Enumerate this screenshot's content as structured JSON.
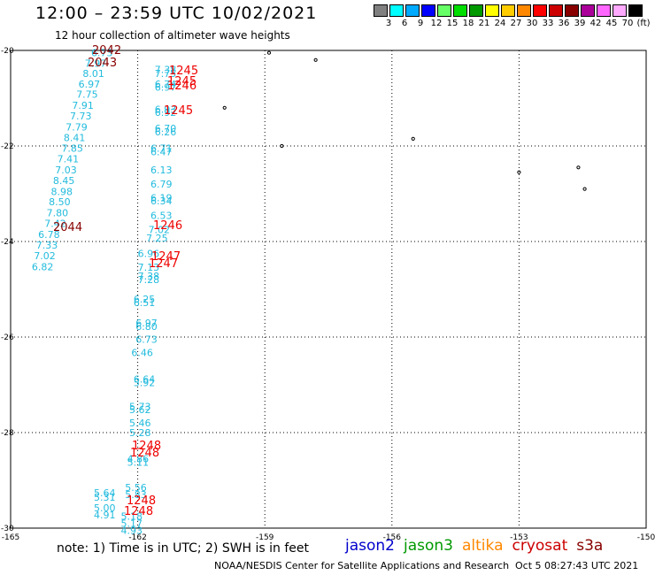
{
  "header": {
    "title": "12:00 – 23:59 UTC 10/02/2021",
    "subtitle": "12 hour collection of altimeter wave heights"
  },
  "legend": {
    "unit": "(ft)",
    "swatches": [
      {
        "color": "#808080",
        "label": "3"
      },
      {
        "color": "#00ffff",
        "label": "6"
      },
      {
        "color": "#00aaff",
        "label": "9"
      },
      {
        "color": "#0000ff",
        "label": "12"
      },
      {
        "color": "#66ff66",
        "label": "15"
      },
      {
        "color": "#00dd00",
        "label": "18"
      },
      {
        "color": "#009900",
        "label": "21"
      },
      {
        "color": "#ffff00",
        "label": "24"
      },
      {
        "color": "#ffcc00",
        "label": "27"
      },
      {
        "color": "#ff8800",
        "label": "30"
      },
      {
        "color": "#ff0000",
        "label": "33"
      },
      {
        "color": "#cc0000",
        "label": "36"
      },
      {
        "color": "#880000",
        "label": "39"
      },
      {
        "color": "#aa0099",
        "label": "42"
      },
      {
        "color": "#ff66ff",
        "label": "45"
      },
      {
        "color": "#ffaaff",
        "label": "70"
      },
      {
        "color": "#000000",
        "label": ""
      }
    ]
  },
  "map": {
    "lon_min": -165,
    "lon_max": -150,
    "lat_min": -30,
    "lat_max": -20,
    "lon_ticks": [
      "-165",
      "-162",
      "-159",
      "-156",
      "-153",
      "-150"
    ],
    "lat_ticks": [
      "-20",
      "-22",
      "-24",
      "-26",
      "-28",
      "-30"
    ],
    "islands": [
      {
        "name": "island-a",
        "lon": -159.95,
        "lat": -21.2
      },
      {
        "name": "island-b",
        "lon": -158.9,
        "lat": -20.05
      },
      {
        "name": "island-c",
        "lon": -158.6,
        "lat": -22.0
      },
      {
        "name": "island-d",
        "lon": -157.8,
        "lat": -20.2
      },
      {
        "name": "island-e",
        "lon": -155.5,
        "lat": -21.85
      },
      {
        "name": "island-f",
        "lon": -153.0,
        "lat": -22.55
      },
      {
        "name": "island-g",
        "lon": -151.6,
        "lat": -22.45
      },
      {
        "name": "island-h",
        "lon": -151.45,
        "lat": -22.9
      }
    ],
    "obs_cyan": [
      {
        "lon": -163.1,
        "lat": -20.05,
        "v": "6.73"
      },
      {
        "lon": -163.25,
        "lat": -20.27,
        "v": "7.97"
      },
      {
        "lon": -163.3,
        "lat": -20.48,
        "v": "8.01"
      },
      {
        "lon": -163.4,
        "lat": -20.7,
        "v": "6.97"
      },
      {
        "lon": -163.45,
        "lat": -20.92,
        "v": "7.75"
      },
      {
        "lon": -163.55,
        "lat": -21.15,
        "v": "7.91"
      },
      {
        "lon": -163.6,
        "lat": -21.37,
        "v": "7.73"
      },
      {
        "lon": -163.7,
        "lat": -21.6,
        "v": "7.79"
      },
      {
        "lon": -163.75,
        "lat": -21.82,
        "v": "8.41"
      },
      {
        "lon": -163.8,
        "lat": -22.05,
        "v": "7.85"
      },
      {
        "lon": -163.9,
        "lat": -22.27,
        "v": "7.41"
      },
      {
        "lon": -163.95,
        "lat": -22.5,
        "v": "7.03"
      },
      {
        "lon": -164.0,
        "lat": -22.72,
        "v": "8.45"
      },
      {
        "lon": -164.05,
        "lat": -22.95,
        "v": "8.98"
      },
      {
        "lon": -164.1,
        "lat": -23.17,
        "v": "8.50"
      },
      {
        "lon": -164.15,
        "lat": -23.4,
        "v": "7.80"
      },
      {
        "lon": -164.2,
        "lat": -23.62,
        "v": "7.42"
      },
      {
        "lon": -164.35,
        "lat": -23.85,
        "v": "6.78"
      },
      {
        "lon": -164.4,
        "lat": -24.07,
        "v": "7.33"
      },
      {
        "lon": -164.45,
        "lat": -24.3,
        "v": "7.02"
      },
      {
        "lon": -164.5,
        "lat": -24.53,
        "v": "6.82"
      },
      {
        "lon": -161.6,
        "lat": -20.4,
        "v": "7.38"
      },
      {
        "lon": -161.6,
        "lat": -20.48,
        "v": "7.75"
      },
      {
        "lon": -161.6,
        "lat": -20.7,
        "v": "6.74"
      },
      {
        "lon": -161.6,
        "lat": -20.77,
        "v": "6.97"
      },
      {
        "lon": -161.6,
        "lat": -21.23,
        "v": "6.93"
      },
      {
        "lon": -161.6,
        "lat": -21.3,
        "v": "6.92"
      },
      {
        "lon": -161.6,
        "lat": -21.63,
        "v": "6.70"
      },
      {
        "lon": -161.6,
        "lat": -21.7,
        "v": "6.26"
      },
      {
        "lon": -161.7,
        "lat": -22.05,
        "v": "6.71"
      },
      {
        "lon": -161.7,
        "lat": -22.12,
        "v": "6.47"
      },
      {
        "lon": -161.7,
        "lat": -22.5,
        "v": "6.13"
      },
      {
        "lon": -161.7,
        "lat": -22.8,
        "v": "6.79"
      },
      {
        "lon": -161.7,
        "lat": -23.08,
        "v": "6.19"
      },
      {
        "lon": -161.7,
        "lat": -23.15,
        "v": "6.34"
      },
      {
        "lon": -161.7,
        "lat": -23.45,
        "v": "6.53"
      },
      {
        "lon": -161.75,
        "lat": -23.75,
        "v": "7.02"
      },
      {
        "lon": -161.8,
        "lat": -23.93,
        "v": "7.25"
      },
      {
        "lon": -162.0,
        "lat": -24.25,
        "v": "6.96"
      },
      {
        "lon": -162.0,
        "lat": -24.54,
        "v": "7.13"
      },
      {
        "lon": -162.0,
        "lat": -24.72,
        "v": "7.38"
      },
      {
        "lon": -162.0,
        "lat": -24.8,
        "v": "7.28"
      },
      {
        "lon": -162.1,
        "lat": -25.2,
        "v": "6.25"
      },
      {
        "lon": -162.1,
        "lat": -25.28,
        "v": "6.51"
      },
      {
        "lon": -162.05,
        "lat": -25.7,
        "v": "6.97"
      },
      {
        "lon": -162.05,
        "lat": -25.78,
        "v": "6.80"
      },
      {
        "lon": -162.05,
        "lat": -26.05,
        "v": "6.73"
      },
      {
        "lon": -162.15,
        "lat": -26.32,
        "v": "6.46"
      },
      {
        "lon": -162.1,
        "lat": -26.88,
        "v": "6.64"
      },
      {
        "lon": -162.1,
        "lat": -26.95,
        "v": "5.92"
      },
      {
        "lon": -162.2,
        "lat": -27.45,
        "v": "5.73"
      },
      {
        "lon": -162.2,
        "lat": -27.52,
        "v": "5.62"
      },
      {
        "lon": -162.2,
        "lat": -27.8,
        "v": "5.46"
      },
      {
        "lon": -162.2,
        "lat": -28.0,
        "v": "5.28"
      },
      {
        "lon": -162.25,
        "lat": -28.55,
        "v": "4.86"
      },
      {
        "lon": -162.25,
        "lat": -28.62,
        "v": "5.11"
      },
      {
        "lon": -162.3,
        "lat": -29.15,
        "v": "5.56"
      },
      {
        "lon": -162.3,
        "lat": -29.3,
        "v": "5.83"
      },
      {
        "lon": -162.4,
        "lat": -29.75,
        "v": "5.18"
      },
      {
        "lon": -162.4,
        "lat": -29.9,
        "v": "5.17"
      },
      {
        "lon": -162.4,
        "lat": -30.05,
        "v": "4.93"
      }
    ],
    "obs_bottom": [
      {
        "x": 106,
        "y": 561,
        "v": "5.64"
      },
      {
        "x": 106,
        "y": 566,
        "v": "5.31"
      },
      {
        "x": 106,
        "y": 578,
        "v": "5.00"
      },
      {
        "x": 106,
        "y": 586,
        "v": "4.91"
      }
    ],
    "times": [
      {
        "x": 104,
        "y": 61,
        "t": "2042",
        "color": "#880000"
      },
      {
        "x": 99,
        "y": 75,
        "t": "2043",
        "color": "#880000"
      },
      {
        "x": 60,
        "y": 261,
        "t": "2044",
        "color": "#880000"
      },
      {
        "x": 191,
        "y": 84,
        "t": "1245",
        "color": "#ee0000"
      },
      {
        "x": 189,
        "y": 96,
        "t": "1245",
        "color": "#ee0000"
      },
      {
        "x": 189,
        "y": 101,
        "t": "1246",
        "color": "#ee0000"
      },
      {
        "x": 185,
        "y": 129,
        "t": "1245",
        "color": "#ee0000"
      },
      {
        "x": 173,
        "y": 259,
        "t": "1246",
        "color": "#ee0000"
      },
      {
        "x": 171,
        "y": 294,
        "t": "1247",
        "color": "#ee0000"
      },
      {
        "x": 168,
        "y": 302,
        "t": "1247",
        "color": "#ee0000"
      },
      {
        "x": 149,
        "y": 508,
        "t": "1248",
        "color": "#ee0000"
      },
      {
        "x": 147,
        "y": 516,
        "t": "1248",
        "color": "#ee0000"
      },
      {
        "x": 143,
        "y": 570,
        "t": "1248",
        "color": "#ee0000"
      },
      {
        "x": 140,
        "y": 582,
        "t": "1248",
        "color": "#ee0000"
      }
    ]
  },
  "footer": {
    "note": "note:  1) Time is in UTC;  2) SWH is in feet",
    "satellites": [
      {
        "name": "jason2",
        "color": "#0000cc"
      },
      {
        "name": "jason3",
        "color": "#009900"
      },
      {
        "name": "altika",
        "color": "#ff8800"
      },
      {
        "name": "cryosat",
        "color": "#cc0000"
      },
      {
        "name": "s3a",
        "color": "#880000"
      }
    ],
    "credit": "NOAA/NESDIS Center for Satellite Applications and Research",
    "timestamp": "Oct  5 08:27:43 UTC 2021"
  }
}
